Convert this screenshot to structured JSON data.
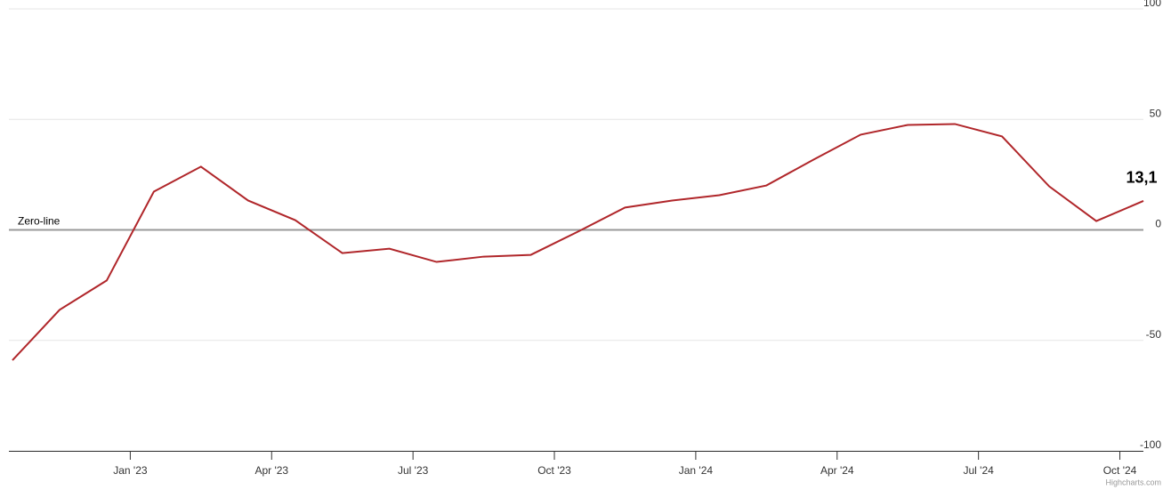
{
  "chart_data": {
    "type": "line",
    "x": [
      "2022-10",
      "2022-11",
      "2022-12",
      "2023-01",
      "2023-02",
      "2023-03",
      "2023-04",
      "2023-05",
      "2023-06",
      "2023-07",
      "2023-08",
      "2023-09",
      "2023-10",
      "2023-11",
      "2023-12",
      "2024-01",
      "2024-02",
      "2024-03",
      "2024-04",
      "2024-05",
      "2024-06",
      "2024-07",
      "2024-08",
      "2024-09",
      "2024-10"
    ],
    "series": [
      {
        "color": "#b0262a",
        "values": [
          -59,
          -36.2,
          -22.9,
          17.3,
          28.6,
          13.3,
          4.4,
          -10.5,
          -8.5,
          -14.5,
          -12.1,
          -11.3,
          -0.8,
          10.1,
          13.3,
          15.7,
          20.1,
          31.8,
          43.1,
          47.5,
          47.9,
          42.3,
          19.7,
          4,
          13.1
        ],
        "value_labels": [
          null,
          null,
          null,
          null,
          null,
          null,
          null,
          null,
          null,
          null,
          null,
          null,
          null,
          null,
          null,
          null,
          null,
          null,
          null,
          null,
          null,
          null,
          null,
          null,
          "13,1"
        ]
      }
    ],
    "xlim": [
      "2022-10",
      "2024-10"
    ],
    "xticks": [
      {
        "value": "2023-01",
        "label": "Jan '23"
      },
      {
        "value": "2023-04",
        "label": "Apr '23"
      },
      {
        "value": "2023-07",
        "label": "Jul '23"
      },
      {
        "value": "2023-10",
        "label": "Oct '23"
      },
      {
        "value": "2024-01",
        "label": "Jan '24"
      },
      {
        "value": "2024-04",
        "label": "Apr '24"
      },
      {
        "value": "2024-07",
        "label": "Jul '24"
      },
      {
        "value": "2024-10",
        "label": "Oct '24"
      }
    ],
    "ylim": [
      -100,
      100
    ],
    "yticks": [
      -100,
      -50,
      0,
      50,
      100
    ],
    "grid": true,
    "plot_line": {
      "value": 0,
      "label": "Zero-line"
    },
    "credits": "Highcharts.com"
  }
}
